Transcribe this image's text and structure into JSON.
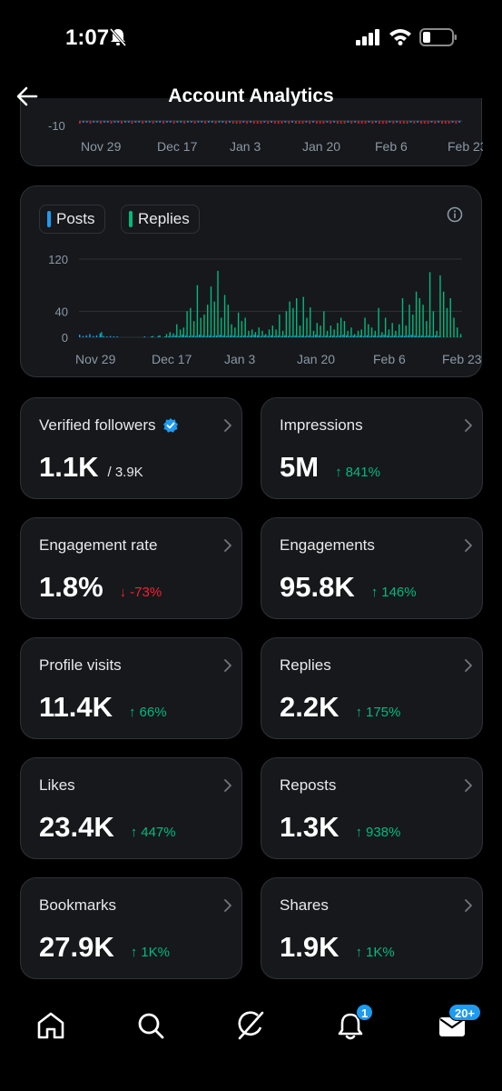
{
  "status_bar": {
    "time": "1:07"
  },
  "header": {
    "title": "Account Analytics"
  },
  "top_chart": {
    "y_tick": "-10",
    "x_ticks": [
      "Nov 29",
      "Dec 17",
      "Jan 3",
      "Jan 20",
      "Feb 6",
      "Feb 23"
    ]
  },
  "legend": {
    "posts": "Posts",
    "replies": "Replies"
  },
  "colors": {
    "posts": "#1d9bf0",
    "replies": "#00ba7c",
    "up": "#00ba7c",
    "down": "#f4212e"
  },
  "chart_data": {
    "type": "bar",
    "series": [
      {
        "name": "Posts",
        "values": [
          4,
          2,
          3,
          5,
          2,
          3,
          6,
          2,
          1,
          2,
          1,
          1,
          0,
          0,
          0,
          0,
          0,
          0,
          0,
          1,
          0,
          1,
          0,
          2,
          0,
          1,
          1,
          2,
          3,
          2,
          4,
          3,
          2,
          3,
          2,
          4,
          3,
          2,
          3,
          2,
          3,
          4,
          3,
          2,
          3,
          3,
          2,
          2,
          3,
          2,
          3,
          4,
          3,
          2,
          3,
          2,
          3,
          2,
          3,
          2,
          3,
          2,
          2,
          3,
          2,
          3,
          2,
          3,
          2,
          4,
          3,
          2,
          3,
          2,
          3,
          2,
          3,
          4,
          3,
          2,
          3,
          2,
          3,
          2,
          3,
          2,
          3,
          2,
          3,
          4,
          3,
          2,
          3,
          2,
          3,
          2,
          3,
          4,
          3,
          2,
          3,
          2,
          3,
          2,
          3,
          2
        ]
      },
      {
        "name": "Replies",
        "values": [
          0,
          0,
          0,
          0,
          0,
          0,
          8,
          0,
          0,
          0,
          0,
          0,
          0,
          0,
          0,
          0,
          0,
          0,
          0,
          0,
          0,
          2,
          0,
          3,
          0,
          5,
          8,
          6,
          20,
          12,
          15,
          40,
          45,
          25,
          80,
          30,
          35,
          50,
          78,
          55,
          102,
          30,
          65,
          50,
          20,
          15,
          38,
          25,
          30,
          10,
          12,
          8,
          15,
          10,
          5,
          12,
          18,
          12,
          35,
          10,
          40,
          55,
          45,
          60,
          18,
          62,
          30,
          46,
          10,
          22,
          18,
          40,
          10,
          18,
          12,
          22,
          30,
          25,
          10,
          15,
          5,
          10,
          12,
          30,
          20,
          15,
          10,
          45,
          8,
          30,
          12,
          22,
          10,
          20,
          60,
          18,
          50,
          35,
          70,
          60,
          50,
          25,
          100,
          40,
          10,
          95,
          70,
          45,
          60,
          30,
          15,
          5
        ]
      }
    ],
    "x_ticks": [
      "Nov 29",
      "Dec 17",
      "Jan 3",
      "Jan 20",
      "Feb 6",
      "Feb 23"
    ],
    "y_ticks": [
      "120",
      "40",
      "0"
    ],
    "ylim": [
      0,
      125
    ]
  },
  "stats": [
    {
      "label": "Verified followers",
      "value": "1.1K",
      "sub": "/ 3.9K",
      "delta": "",
      "dir": ""
    },
    {
      "label": "Impressions",
      "value": "5M",
      "sub": "",
      "delta": "841%",
      "dir": "up"
    },
    {
      "label": "Engagement rate",
      "value": "1.8%",
      "sub": "",
      "delta": "-73%",
      "dir": "down"
    },
    {
      "label": "Engagements",
      "value": "95.8K",
      "sub": "",
      "delta": "146%",
      "dir": "up"
    },
    {
      "label": "Profile visits",
      "value": "11.4K",
      "sub": "",
      "delta": "66%",
      "dir": "up"
    },
    {
      "label": "Replies",
      "value": "2.2K",
      "sub": "",
      "delta": "175%",
      "dir": "up"
    },
    {
      "label": "Likes",
      "value": "23.4K",
      "sub": "",
      "delta": "447%",
      "dir": "up"
    },
    {
      "label": "Reposts",
      "value": "1.3K",
      "sub": "",
      "delta": "938%",
      "dir": "up"
    },
    {
      "label": "Bookmarks",
      "value": "27.9K",
      "sub": "",
      "delta": "1K%",
      "dir": "up"
    },
    {
      "label": "Shares",
      "value": "1.9K",
      "sub": "",
      "delta": "1K%",
      "dir": "up"
    }
  ],
  "tabbar": {
    "items": [
      "home-icon",
      "search-icon",
      "grok-icon",
      "notifications-icon",
      "messages-icon"
    ],
    "notifications_badge": "1",
    "messages_badge": "20+"
  }
}
